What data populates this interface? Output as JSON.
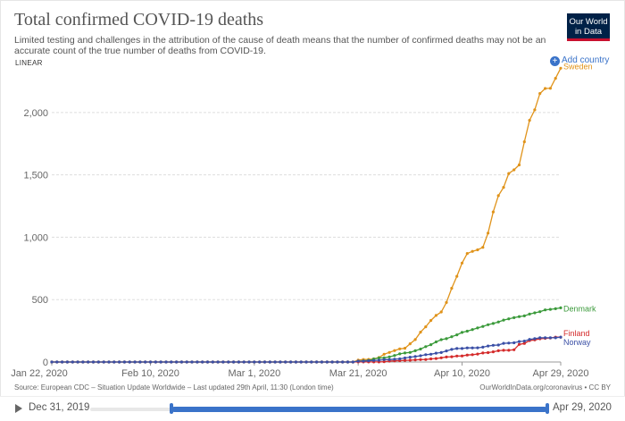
{
  "title": "Total confirmed COVID-19 deaths",
  "subtitle": "Limited testing and challenges in the attribution of the cause of death means that the number of confirmed deaths may not be an accurate count of the true number of deaths from COVID-19.",
  "logo_text": "Our World in Data",
  "scale_label": "LINEAR",
  "add_country_label": "Add country",
  "source_text": "Source: European CDC – Situation Update Worldwide – Last updated 29th April, 11:30 (London time)",
  "credit_text": "OurWorldInData.org/coronavirus • CC BY",
  "timeline": {
    "start_label": "Dec 31, 2019",
    "end_label": "Apr 29, 2020"
  },
  "colors": {
    "accent": "#3a73c9",
    "sweden": "#e0931a",
    "denmark": "#3b9a3b",
    "finland": "#d42a2a",
    "norway": "#3a4fa6"
  },
  "chart_data": {
    "type": "line",
    "x_start": "Jan 22, 2020",
    "x_end": "Apr 29, 2020",
    "x_ticks": [
      "Jan 22, 2020",
      "Feb 10, 2020",
      "Mar 1, 2020",
      "Mar 21, 2020",
      "Apr 10, 2020",
      "Apr 29, 2020"
    ],
    "ylim": [
      0,
      2400
    ],
    "y_ticks": [
      "0",
      "500",
      "1,000",
      "1,500",
      "2,000"
    ],
    "y_tick_values": [
      0,
      500,
      1000,
      1500,
      2000
    ],
    "grid": "horizontal-dashed",
    "series": [
      {
        "name": "Sweden",
        "color": "#e0931a",
        "points": [
          [
            "Mar 21, 2020",
            15
          ],
          [
            "Mar 22, 2020",
            20
          ],
          [
            "Mar 23, 2020",
            21
          ],
          [
            "Mar 24, 2020",
            25
          ],
          [
            "Mar 25, 2020",
            36
          ],
          [
            "Mar 26, 2020",
            62
          ],
          [
            "Mar 27, 2020",
            77
          ],
          [
            "Mar 28, 2020",
            92
          ],
          [
            "Mar 29, 2020",
            105
          ],
          [
            "Mar 30, 2020",
            110
          ],
          [
            "Mar 31, 2020",
            146
          ],
          [
            "Apr 1, 2020",
            180
          ],
          [
            "Apr 2, 2020",
            239
          ],
          [
            "Apr 3, 2020",
            282
          ],
          [
            "Apr 4, 2020",
            333
          ],
          [
            "Apr 5, 2020",
            373
          ],
          [
            "Apr 6, 2020",
            401
          ],
          [
            "Apr 7, 2020",
            477
          ],
          [
            "Apr 8, 2020",
            591
          ],
          [
            "Apr 9, 2020",
            687
          ],
          [
            "Apr 10, 2020",
            793
          ],
          [
            "Apr 11, 2020",
            870
          ],
          [
            "Apr 12, 2020",
            887
          ],
          [
            "Apr 13, 2020",
            899
          ],
          [
            "Apr 14, 2020",
            919
          ],
          [
            "Apr 15, 2020",
            1033
          ],
          [
            "Apr 16, 2020",
            1203
          ],
          [
            "Apr 17, 2020",
            1333
          ],
          [
            "Apr 18, 2020",
            1400
          ],
          [
            "Apr 19, 2020",
            1511
          ],
          [
            "Apr 20, 2020",
            1540
          ],
          [
            "Apr 21, 2020",
            1580
          ],
          [
            "Apr 22, 2020",
            1765
          ],
          [
            "Apr 23, 2020",
            1937
          ],
          [
            "Apr 24, 2020",
            2021
          ],
          [
            "Apr 25, 2020",
            2152
          ],
          [
            "Apr 26, 2020",
            2192
          ],
          [
            "Apr 27, 2020",
            2194
          ],
          [
            "Apr 28, 2020",
            2274
          ],
          [
            "Apr 29, 2020",
            2355
          ]
        ]
      },
      {
        "name": "Denmark",
        "color": "#3b9a3b",
        "points": [
          [
            "Mar 21, 2020",
            6
          ],
          [
            "Mar 22, 2020",
            9
          ],
          [
            "Mar 23, 2020",
            13
          ],
          [
            "Mar 24, 2020",
            24
          ],
          [
            "Mar 25, 2020",
            32
          ],
          [
            "Mar 26, 2020",
            34
          ],
          [
            "Mar 27, 2020",
            41
          ],
          [
            "Mar 28, 2020",
            52
          ],
          [
            "Mar 29, 2020",
            65
          ],
          [
            "Mar 30, 2020",
            72
          ],
          [
            "Mar 31, 2020",
            77
          ],
          [
            "Apr 1, 2020",
            90
          ],
          [
            "Apr 2, 2020",
            104
          ],
          [
            "Apr 3, 2020",
            123
          ],
          [
            "Apr 4, 2020",
            139
          ],
          [
            "Apr 5, 2020",
            161
          ],
          [
            "Apr 6, 2020",
            179
          ],
          [
            "Apr 7, 2020",
            187
          ],
          [
            "Apr 8, 2020",
            203
          ],
          [
            "Apr 9, 2020",
            218
          ],
          [
            "Apr 10, 2020",
            237
          ],
          [
            "Apr 11, 2020",
            247
          ],
          [
            "Apr 12, 2020",
            260
          ],
          [
            "Apr 13, 2020",
            273
          ],
          [
            "Apr 14, 2020",
            285
          ],
          [
            "Apr 15, 2020",
            299
          ],
          [
            "Apr 16, 2020",
            309
          ],
          [
            "Apr 17, 2020",
            321
          ],
          [
            "Apr 18, 2020",
            336
          ],
          [
            "Apr 19, 2020",
            346
          ],
          [
            "Apr 20, 2020",
            355
          ],
          [
            "Apr 21, 2020",
            364
          ],
          [
            "Apr 22, 2020",
            370
          ],
          [
            "Apr 23, 2020",
            384
          ],
          [
            "Apr 24, 2020",
            394
          ],
          [
            "Apr 25, 2020",
            403
          ],
          [
            "Apr 26, 2020",
            418
          ],
          [
            "Apr 27, 2020",
            422
          ],
          [
            "Apr 28, 2020",
            427
          ],
          [
            "Apr 29, 2020",
            434
          ]
        ]
      },
      {
        "name": "Finland",
        "color": "#d42a2a",
        "points": [
          [
            "Mar 21, 2020",
            1
          ],
          [
            "Mar 22, 2020",
            1
          ],
          [
            "Mar 23, 2020",
            1
          ],
          [
            "Mar 24, 2020",
            1
          ],
          [
            "Mar 25, 2020",
            1
          ],
          [
            "Mar 26, 2020",
            3
          ],
          [
            "Mar 27, 2020",
            7
          ],
          [
            "Mar 28, 2020",
            9
          ],
          [
            "Mar 29, 2020",
            11
          ],
          [
            "Mar 30, 2020",
            13
          ],
          [
            "Mar 31, 2020",
            14
          ],
          [
            "Apr 1, 2020",
            17
          ],
          [
            "Apr 2, 2020",
            19
          ],
          [
            "Apr 3, 2020",
            20
          ],
          [
            "Apr 4, 2020",
            25
          ],
          [
            "Apr 5, 2020",
            28
          ],
          [
            "Apr 6, 2020",
            34
          ],
          [
            "Apr 7, 2020",
            40
          ],
          [
            "Apr 8, 2020",
            42
          ],
          [
            "Apr 9, 2020",
            48
          ],
          [
            "Apr 10, 2020",
            49
          ],
          [
            "Apr 11, 2020",
            56
          ],
          [
            "Apr 12, 2020",
            59
          ],
          [
            "Apr 13, 2020",
            64
          ],
          [
            "Apr 14, 2020",
            72
          ],
          [
            "Apr 15, 2020",
            75
          ],
          [
            "Apr 16, 2020",
            82
          ],
          [
            "Apr 17, 2020",
            90
          ],
          [
            "Apr 18, 2020",
            94
          ],
          [
            "Apr 19, 2020",
            94
          ],
          [
            "Apr 20, 2020",
            98
          ],
          [
            "Apr 21, 2020",
            141
          ],
          [
            "Apr 22, 2020",
            149
          ],
          [
            "Apr 23, 2020",
            172
          ],
          [
            "Apr 24, 2020",
            177
          ],
          [
            "Apr 25, 2020",
            186
          ],
          [
            "Apr 26, 2020",
            190
          ],
          [
            "Apr 27, 2020",
            193
          ],
          [
            "Apr 28, 2020",
            199
          ],
          [
            "Apr 29, 2020",
            199
          ]
        ]
      },
      {
        "name": "Norway",
        "color": "#3a4fa6",
        "points": [
          [
            "Mar 21, 2020",
            7
          ],
          [
            "Mar 22, 2020",
            7
          ],
          [
            "Mar 23, 2020",
            10
          ],
          [
            "Mar 24, 2020",
            12
          ],
          [
            "Mar 25, 2020",
            14
          ],
          [
            "Mar 26, 2020",
            19
          ],
          [
            "Mar 27, 2020",
            19
          ],
          [
            "Mar 28, 2020",
            23
          ],
          [
            "Mar 29, 2020",
            25
          ],
          [
            "Mar 30, 2020",
            32
          ],
          [
            "Mar 31, 2020",
            39
          ],
          [
            "Apr 1, 2020",
            44
          ],
          [
            "Apr 2, 2020",
            50
          ],
          [
            "Apr 3, 2020",
            59
          ],
          [
            "Apr 4, 2020",
            62
          ],
          [
            "Apr 5, 2020",
            71
          ],
          [
            "Apr 6, 2020",
            76
          ],
          [
            "Apr 7, 2020",
            89
          ],
          [
            "Apr 8, 2020",
            101
          ],
          [
            "Apr 9, 2020",
            108
          ],
          [
            "Apr 10, 2020",
            108
          ],
          [
            "Apr 11, 2020",
            113
          ],
          [
            "Apr 12, 2020",
            113
          ],
          [
            "Apr 13, 2020",
            114
          ],
          [
            "Apr 14, 2020",
            119
          ],
          [
            "Apr 15, 2020",
            128
          ],
          [
            "Apr 16, 2020",
            134
          ],
          [
            "Apr 17, 2020",
            136
          ],
          [
            "Apr 18, 2020",
            150
          ],
          [
            "Apr 19, 2020",
            152
          ],
          [
            "Apr 20, 2020",
            154
          ],
          [
            "Apr 21, 2020",
            164
          ],
          [
            "Apr 22, 2020",
            168
          ],
          [
            "Apr 23, 2020",
            181
          ],
          [
            "Apr 24, 2020",
            187
          ],
          [
            "Apr 25, 2020",
            194
          ],
          [
            "Apr 26, 2020",
            194
          ],
          [
            "Apr 27, 2020",
            194
          ],
          [
            "Apr 28, 2020",
            194
          ],
          [
            "Apr 29, 2020",
            199
          ]
        ]
      }
    ]
  }
}
